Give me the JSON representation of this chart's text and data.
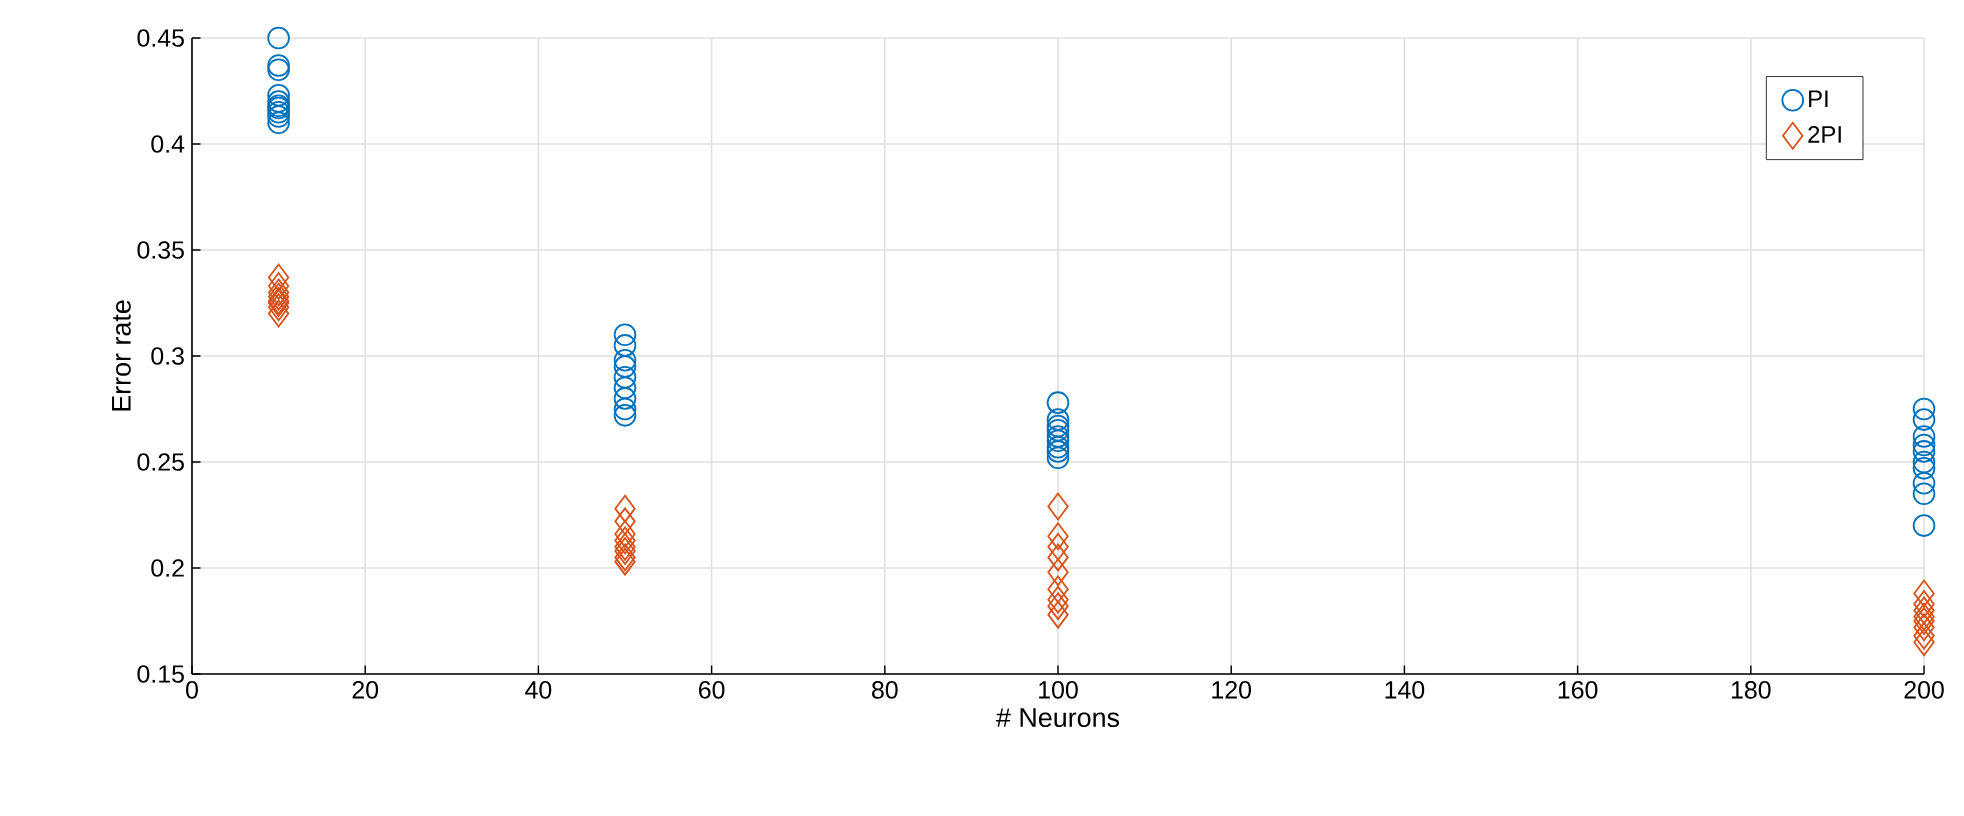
{
  "chart_data": {
    "type": "scatter",
    "xlabel": "# Neurons",
    "ylabel": "Error rate",
    "xlim": [
      0,
      200
    ],
    "xticks": [
      0,
      20,
      40,
      60,
      80,
      100,
      120,
      140,
      160,
      180,
      200
    ],
    "ylim": [
      0.15,
      0.45
    ],
    "yticks": [
      0.15,
      0.2,
      0.25,
      0.3,
      0.35,
      0.4,
      0.45
    ],
    "grid": true,
    "legend": "top right",
    "series": [
      {
        "name": "PI",
        "color": "#0072bd",
        "marker": "circle",
        "x": [
          10,
          10,
          10,
          10,
          10,
          10,
          10,
          10,
          10,
          10,
          50,
          50,
          50,
          50,
          50,
          50,
          50,
          50,
          50,
          100,
          100,
          100,
          100,
          100,
          100,
          100,
          100,
          100,
          200,
          200,
          200,
          200,
          200,
          200,
          200,
          200,
          200,
          200
        ],
        "values": [
          0.45,
          0.437,
          0.435,
          0.423,
          0.42,
          0.418,
          0.417,
          0.415,
          0.413,
          0.41,
          0.31,
          0.305,
          0.298,
          0.295,
          0.29,
          0.285,
          0.28,
          0.275,
          0.272,
          0.278,
          0.27,
          0.267,
          0.265,
          0.262,
          0.26,
          0.257,
          0.255,
          0.252,
          0.275,
          0.27,
          0.262,
          0.258,
          0.255,
          0.25,
          0.247,
          0.24,
          0.235,
          0.22
        ]
      },
      {
        "name": "2PI",
        "color": "#d95319",
        "marker": "diamond",
        "x": [
          10,
          10,
          10,
          10,
          10,
          10,
          10,
          10,
          50,
          50,
          50,
          50,
          50,
          50,
          50,
          50,
          100,
          100,
          100,
          100,
          100,
          100,
          100,
          100,
          100,
          200,
          200,
          200,
          200,
          200,
          200,
          200,
          200
        ],
        "values": [
          0.337,
          0.333,
          0.33,
          0.328,
          0.326,
          0.325,
          0.323,
          0.32,
          0.228,
          0.222,
          0.216,
          0.213,
          0.21,
          0.208,
          0.205,
          0.203,
          0.229,
          0.215,
          0.21,
          0.205,
          0.198,
          0.19,
          0.185,
          0.182,
          0.178,
          0.188,
          0.183,
          0.18,
          0.177,
          0.175,
          0.172,
          0.168,
          0.165
        ]
      }
    ]
  }
}
